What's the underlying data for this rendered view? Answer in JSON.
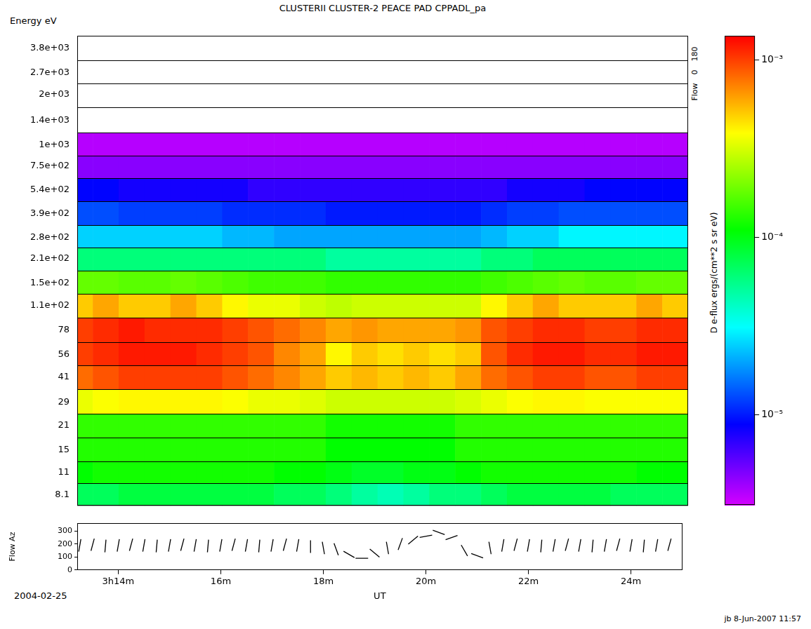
{
  "chart_data": {
    "type": "heatmap",
    "title": "CLUSTERII CLUSTER-2 PEACE PAD CPPADL_pa",
    "y_label": "Energy eV",
    "x_label": "UT",
    "date": "2004-02-25",
    "log": "y",
    "grid": true,
    "xlim": [
      13.2,
      25.0
    ],
    "xticks": [
      {
        "value": 14,
        "label": "3h14m"
      },
      {
        "value": 16,
        "label": "16m"
      },
      {
        "value": 18,
        "label": "18m"
      },
      {
        "value": 20,
        "label": "20m"
      },
      {
        "value": 22,
        "label": "22m"
      },
      {
        "value": 24,
        "label": "24m"
      }
    ],
    "ylim": [
      6.95,
      4508
    ],
    "yticks": [
      8.1,
      11,
      15,
      21,
      29,
      41,
      56,
      78,
      {
        "value": 110,
        "label": "1.1e+02"
      },
      {
        "value": 150,
        "label": "1.5e+02"
      },
      {
        "value": 210,
        "label": "2.1e+02"
      },
      {
        "value": 280,
        "label": "2.8e+02"
      },
      {
        "value": 390,
        "label": "3.9e+02"
      },
      {
        "value": 540,
        "label": "5.4e+02"
      },
      {
        "value": 750,
        "label": "7.5e+02"
      },
      {
        "value": 1000,
        "label": "1e+03"
      },
      {
        "value": 1400,
        "label": "1.4e+03"
      },
      {
        "value": 2000,
        "label": "2e+03"
      },
      {
        "value": 2700,
        "label": "2.7e+03"
      },
      {
        "value": 3800,
        "label": "3.8e+03"
      }
    ],
    "x_edges": [
      13.2,
      13.5,
      14.0,
      14.5,
      15.0,
      15.5,
      16.0,
      16.5,
      17.0,
      17.5,
      18.0,
      18.5,
      19.0,
      19.5,
      20.0,
      20.5,
      21.0,
      21.5,
      22.0,
      22.5,
      23.0,
      23.5,
      24.0,
      24.5,
      25.0
    ],
    "y_edges": [
      6.95,
      9.44,
      12.85,
      17.75,
      24.68,
      34.48,
      47.92,
      66.09,
      92.63,
      128.5,
      177.5,
      242.5,
      330.5,
      458.9,
      636.4,
      866,
      1183,
      1673,
      2324,
      3203,
      4508
    ],
    "cells": [
      [
        7e-05,
        7e-05,
        8e-05,
        8e-05,
        8e-05,
        8e-05,
        8e-05,
        8e-05,
        7e-05,
        7e-05,
        6e-05,
        5e-05,
        4.5e-05,
        5e-05,
        6e-05,
        6e-05,
        7e-05,
        8e-05,
        8e-05,
        8e-05,
        8e-05,
        7e-05,
        7e-05,
        7e-05
      ],
      [
        0.00011,
        0.00012,
        0.00012,
        0.00012,
        0.00012,
        0.00012,
        0.00012,
        0.00012,
        0.00011,
        0.00011,
        0.0001,
        9e-05,
        9e-05,
        0.0001,
        0.0001,
        0.00011,
        0.00012,
        0.00012,
        0.00012,
        0.00012,
        0.00012,
        0.00012,
        0.00011,
        0.00011
      ],
      [
        0.00013,
        0.00013,
        0.00013,
        0.00013,
        0.00013,
        0.00013,
        0.00013,
        0.00013,
        0.00013,
        0.00013,
        0.00011,
        0.00011,
        0.00011,
        0.00011,
        0.00011,
        0.00013,
        0.00013,
        0.00013,
        0.00013,
        0.00013,
        0.00013,
        0.00013,
        0.00013,
        0.00013
      ],
      [
        0.00014,
        0.00014,
        0.00014,
        0.00014,
        0.00014,
        0.00014,
        0.00014,
        0.00014,
        0.00014,
        0.00014,
        0.00012,
        0.00012,
        0.00012,
        0.00012,
        0.00012,
        0.00014,
        0.00014,
        0.00014,
        0.00014,
        0.00014,
        0.00014,
        0.00014,
        0.00014,
        0.00014
      ],
      [
        0.00035,
        0.00038,
        0.0004,
        0.0004,
        0.0004,
        0.0004,
        0.00038,
        0.00035,
        0.00035,
        0.00033,
        0.0003,
        0.0003,
        0.0003,
        0.0003,
        0.0003,
        0.00032,
        0.00035,
        0.00038,
        0.0004,
        0.0004,
        0.00038,
        0.00038,
        0.00038,
        0.00038
      ],
      [
        0.0008,
        0.0009,
        0.001,
        0.001,
        0.001,
        0.001,
        0.0009,
        0.0008,
        0.0007,
        0.0006,
        0.0005,
        0.00055,
        0.0005,
        0.00055,
        0.0005,
        0.0006,
        0.0008,
        0.0009,
        0.001,
        0.001,
        0.0009,
        0.0009,
        0.001,
        0.001
      ],
      [
        0.001,
        0.0011,
        0.0012,
        0.0012,
        0.0012,
        0.0011,
        0.001,
        0.0009,
        0.0007,
        0.0006,
        0.0004,
        0.0005,
        0.00045,
        0.0005,
        0.00045,
        0.0005,
        0.0009,
        0.0011,
        0.0012,
        0.0012,
        0.0011,
        0.0011,
        0.0012,
        0.0012
      ],
      [
        0.001,
        0.0011,
        0.0012,
        0.0011,
        0.0011,
        0.0011,
        0.001,
        0.0009,
        0.0008,
        0.0007,
        0.0006,
        0.00065,
        0.0006,
        0.0006,
        0.0006,
        0.00065,
        0.0009,
        0.001,
        0.0011,
        0.0011,
        0.001,
        0.001,
        0.0011,
        0.0011
      ],
      [
        0.0005,
        0.0006,
        0.0005,
        0.0005,
        0.0006,
        0.0005,
        0.0004,
        0.00035,
        0.00035,
        0.0003,
        0.00028,
        0.0003,
        0.0003,
        0.0003,
        0.0003,
        0.0003,
        0.0004,
        0.0005,
        0.0006,
        0.0005,
        0.0005,
        0.0005,
        0.0006,
        0.0005
      ],
      [
        0.00018,
        0.00018,
        0.00017,
        0.00017,
        0.00018,
        0.00017,
        0.00016,
        0.00015,
        0.00015,
        0.00015,
        0.00014,
        0.00014,
        0.00014,
        0.00014,
        0.00014,
        0.00014,
        0.00015,
        0.00016,
        0.00017,
        0.00018,
        0.00017,
        0.00017,
        0.00018,
        0.00018
      ],
      [
        6e-05,
        6e-05,
        6e-05,
        6e-05,
        6e-05,
        6e-05,
        6e-05,
        6e-05,
        6e-05,
        6e-05,
        5e-05,
        5e-05,
        5e-05,
        5e-05,
        5e-05,
        5e-05,
        6e-05,
        6e-05,
        7e-05,
        7e-05,
        7e-05,
        7e-05,
        7e-05,
        7e-05
      ],
      [
        2.5e-05,
        2.5e-05,
        2.5e-05,
        2.5e-05,
        2.5e-05,
        2.5e-05,
        2.2e-05,
        2.2e-05,
        2e-05,
        2e-05,
        2e-05,
        2e-05,
        2e-05,
        2e-05,
        2e-05,
        2e-05,
        2.2e-05,
        2.5e-05,
        2.5e-05,
        3e-05,
        3e-05,
        3e-05,
        3e-05,
        3e-05
      ],
      [
        1.3e-05,
        1.3e-05,
        1.2e-05,
        1.2e-05,
        1.2e-05,
        1.2e-05,
        1.1e-05,
        1.1e-05,
        1.1e-05,
        1.1e-05,
        1e-05,
        1e-05,
        1e-05,
        1e-05,
        1e-05,
        1e-05,
        1.1e-05,
        1.2e-05,
        1.2e-05,
        1.3e-05,
        1.3e-05,
        1.3e-05,
        1.3e-05,
        1.3e-05
      ],
      [
        9e-06,
        9e-06,
        8e-06,
        8e-06,
        8e-06,
        8e-06,
        8e-06,
        7e-06,
        7e-06,
        7e-06,
        7e-06,
        7e-06,
        7e-06,
        7e-06,
        7e-06,
        7e-06,
        7e-06,
        8e-06,
        8e-06,
        8e-06,
        9e-06,
        9e-06,
        9e-06,
        9e-06
      ],
      [
        4.5e-06,
        4.5e-06,
        4.5e-06,
        4.5e-06,
        4.5e-06,
        4.5e-06,
        4.5e-06,
        4.5e-06,
        4.5e-06,
        4.5e-06,
        4.5e-06,
        4.5e-06,
        4.5e-06,
        4.5e-06,
        4.5e-06,
        4.5e-06,
        4.5e-06,
        4.5e-06,
        4.5e-06,
        4.5e-06,
        4.5e-06,
        4.5e-06,
        4.5e-06,
        4.5e-06
      ],
      [
        3.6e-06,
        3.6e-06,
        3.6e-06,
        3.6e-06,
        3.6e-06,
        3.6e-06,
        3.6e-06,
        3.6e-06,
        3.6e-06,
        3.6e-06,
        3.6e-06,
        3.6e-06,
        3.6e-06,
        3.6e-06,
        3.6e-06,
        3.6e-06,
        3.6e-06,
        3.6e-06,
        3.6e-06,
        3.6e-06,
        3.6e-06,
        3.6e-06,
        3.6e-06,
        3.6e-06
      ],
      [
        null,
        null,
        null,
        null,
        null,
        null,
        null,
        null,
        null,
        null,
        null,
        null,
        null,
        null,
        null,
        null,
        null,
        null,
        null,
        null,
        null,
        null,
        null,
        null
      ],
      [
        null,
        null,
        null,
        null,
        null,
        null,
        null,
        null,
        null,
        null,
        null,
        null,
        null,
        null,
        null,
        null,
        null,
        null,
        null,
        null,
        null,
        null,
        null,
        null
      ],
      [
        null,
        null,
        null,
        null,
        null,
        null,
        null,
        null,
        null,
        null,
        null,
        null,
        null,
        null,
        null,
        null,
        null,
        null,
        null,
        null,
        null,
        null,
        null,
        null
      ],
      [
        null,
        null,
        null,
        null,
        null,
        null,
        null,
        null,
        null,
        null,
        null,
        null,
        null,
        null,
        null,
        null,
        null,
        null,
        null,
        null,
        null,
        null,
        null,
        null
      ]
    ],
    "colorbar": {
      "label": "D e-flux ergs/(cm**2 s sr eV)",
      "log": true,
      "lim": [
        3.1e-06,
        0.00136
      ],
      "ticks": [
        {
          "value": 1e-05,
          "label": "10⁻⁵"
        },
        {
          "value": 0.0001,
          "label": "10⁻⁴"
        },
        {
          "value": 0.001,
          "label": "10⁻³"
        }
      ]
    },
    "flow_direction": {
      "title": "Flow",
      "range": [
        0,
        180
      ]
    },
    "flow_az": {
      "y_label": "Flow Az",
      "ylim": [
        0,
        360
      ],
      "yticks": [
        0,
        100,
        200,
        300
      ],
      "marker": "line",
      "color": "#000000",
      "x": [
        13.25,
        13.5,
        13.75,
        14.0,
        14.25,
        14.5,
        14.75,
        15.0,
        15.25,
        15.5,
        15.75,
        16.0,
        16.25,
        16.5,
        16.75,
        17.0,
        17.25,
        17.5,
        17.75,
        18.0,
        18.25,
        18.5,
        18.75,
        19.0,
        19.25,
        19.5,
        19.75,
        20.0,
        20.25,
        20.5,
        20.75,
        21.0,
        21.25,
        21.5,
        21.75,
        22.0,
        22.25,
        22.5,
        22.75,
        23.0,
        23.25,
        23.5,
        23.75,
        24.0,
        24.25,
        24.5,
        24.75
      ],
      "values": [
        190,
        195,
        185,
        190,
        195,
        190,
        185,
        190,
        195,
        190,
        185,
        190,
        195,
        190,
        185,
        190,
        195,
        190,
        180,
        170,
        160,
        120,
        90,
        130,
        170,
        200,
        230,
        260,
        290,
        250,
        150,
        110,
        170,
        190,
        195,
        190,
        185,
        190,
        195,
        190,
        185,
        190,
        195,
        190,
        185,
        190,
        195
      ]
    },
    "footer": "jb 8-Jun-2007 11:57"
  }
}
